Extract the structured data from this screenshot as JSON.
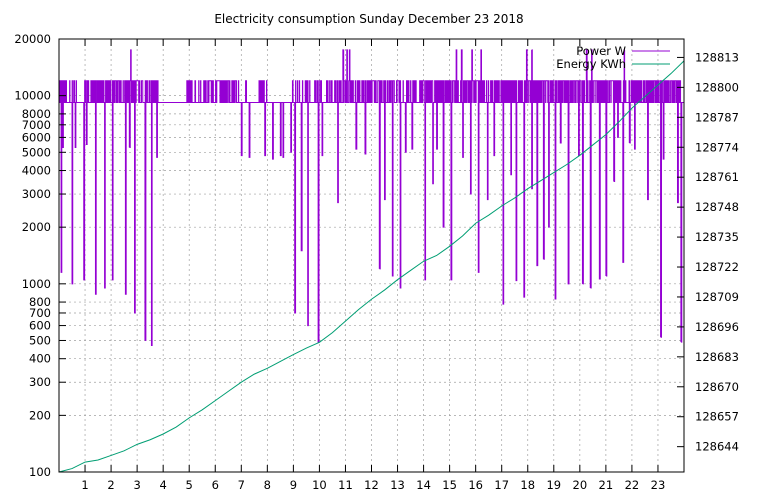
{
  "chart_data": {
    "type": "line",
    "title": "Electricity consumption Sunday December 23 2018",
    "grid": true,
    "legend_position": "top-right",
    "x_ticks": [
      "1",
      "2",
      "3",
      "4",
      "5",
      "6",
      "7",
      "8",
      "9",
      "10",
      "11",
      "12",
      "13",
      "14",
      "15",
      "16",
      "17",
      "18",
      "19",
      "20",
      "21",
      "22",
      "23"
    ],
    "xlim": [
      0,
      24
    ],
    "y_left": {
      "scale": "log",
      "ylim": [
        100,
        20000
      ],
      "ticks": [
        {
          "v": 100,
          "label": "100"
        },
        {
          "v": 200,
          "label": "200"
        },
        {
          "v": 300,
          "label": "300"
        },
        {
          "v": 400,
          "label": "400"
        },
        {
          "v": 500,
          "label": "500"
        },
        {
          "v": 600,
          "label": "600"
        },
        {
          "v": 700,
          "label": "700"
        },
        {
          "v": 800,
          "label": "800"
        },
        {
          "v": 1000,
          "label": "1000"
        },
        {
          "v": 2000,
          "label": "2000"
        },
        {
          "v": 3000,
          "label": "3000"
        },
        {
          "v": 4000,
          "label": "4000"
        },
        {
          "v": 5000,
          "label": "5000"
        },
        {
          "v": 6000,
          "label": "6000"
        },
        {
          "v": 7000,
          "label": "7000"
        },
        {
          "v": 8000,
          "label": "8000"
        },
        {
          "v": 10000,
          "label": "10000"
        },
        {
          "v": 20000,
          "label": "20000"
        }
      ]
    },
    "y_right": {
      "scale": "linear",
      "ylim": [
        128633,
        128821
      ],
      "ticks": [
        128644,
        128657,
        128670,
        128683,
        128696,
        128709,
        128722,
        128735,
        128748,
        128761,
        128774,
        128787,
        128800,
        128813
      ]
    },
    "series": [
      {
        "name": "Power W",
        "axis": "left",
        "color": "#9400d3",
        "base_level": 9200,
        "high_level": 12000,
        "dense_ranges": [
          [
            0.0,
            0.35
          ],
          [
            1.25,
            3.8
          ],
          [
            5.7,
            6.9
          ],
          [
            11.0,
            11.5
          ],
          [
            11.9,
            13.2
          ],
          [
            13.9,
            15.4
          ],
          [
            15.6,
            16.2
          ],
          [
            16.6,
            17.8
          ],
          [
            18.0,
            20.3
          ],
          [
            20.5,
            21.6
          ],
          [
            21.9,
            23.9
          ]
        ],
        "medium_ranges": [
          [
            0.35,
            1.25
          ],
          [
            4.9,
            5.7
          ],
          [
            6.9,
            7.2
          ],
          [
            7.6,
            8.0
          ],
          [
            8.9,
            10.1
          ],
          [
            10.2,
            11.0
          ],
          [
            11.5,
            11.9
          ],
          [
            13.2,
            13.9
          ],
          [
            15.4,
            15.6
          ],
          [
            16.2,
            16.6
          ],
          [
            17.8,
            18.0
          ],
          [
            20.3,
            20.5
          ],
          [
            21.6,
            21.9
          ]
        ],
        "spikes_high": [
          2.75,
          10.9,
          11.05,
          11.15,
          15.25,
          15.45,
          15.85,
          16.2,
          17.95,
          18.15,
          20.25,
          20.45,
          21.7
        ],
        "drops": [
          {
            "t": 0.08,
            "v": 1150
          },
          {
            "t": 0.14,
            "v": 5300
          },
          {
            "t": 0.5,
            "v": 1000
          },
          {
            "t": 0.62,
            "v": 5300
          },
          {
            "t": 0.95,
            "v": 1050
          },
          {
            "t": 1.05,
            "v": 5500
          },
          {
            "t": 1.4,
            "v": 880
          },
          {
            "t": 1.75,
            "v": 950
          },
          {
            "t": 2.05,
            "v": 1050
          },
          {
            "t": 2.55,
            "v": 880
          },
          {
            "t": 2.7,
            "v": 5300
          },
          {
            "t": 2.9,
            "v": 700
          },
          {
            "t": 3.3,
            "v": 500
          },
          {
            "t": 3.55,
            "v": 470
          },
          {
            "t": 3.75,
            "v": 4700
          },
          {
            "t": 7.0,
            "v": 4800
          },
          {
            "t": 7.3,
            "v": 4700
          },
          {
            "t": 7.9,
            "v": 4800
          },
          {
            "t": 8.2,
            "v": 4600
          },
          {
            "t": 8.5,
            "v": 4800
          },
          {
            "t": 8.6,
            "v": 4700
          },
          {
            "t": 8.9,
            "v": 5000
          },
          {
            "t": 9.05,
            "v": 700
          },
          {
            "t": 9.3,
            "v": 1500
          },
          {
            "t": 9.55,
            "v": 600
          },
          {
            "t": 9.95,
            "v": 490
          },
          {
            "t": 10.1,
            "v": 4800
          },
          {
            "t": 10.7,
            "v": 2700
          },
          {
            "t": 11.4,
            "v": 5200
          },
          {
            "t": 11.75,
            "v": 4900
          },
          {
            "t": 12.3,
            "v": 1200
          },
          {
            "t": 12.5,
            "v": 2800
          },
          {
            "t": 12.8,
            "v": 1100
          },
          {
            "t": 13.1,
            "v": 950
          },
          {
            "t": 13.3,
            "v": 5000
          },
          {
            "t": 13.55,
            "v": 5200
          },
          {
            "t": 14.05,
            "v": 1050
          },
          {
            "t": 14.35,
            "v": 3400
          },
          {
            "t": 14.5,
            "v": 5200
          },
          {
            "t": 14.75,
            "v": 2000
          },
          {
            "t": 15.05,
            "v": 1050
          },
          {
            "t": 15.5,
            "v": 4700
          },
          {
            "t": 15.8,
            "v": 3000
          },
          {
            "t": 16.1,
            "v": 1150
          },
          {
            "t": 16.45,
            "v": 2800
          },
          {
            "t": 16.7,
            "v": 4800
          },
          {
            "t": 17.05,
            "v": 780
          },
          {
            "t": 17.35,
            "v": 3800
          },
          {
            "t": 17.55,
            "v": 1040
          },
          {
            "t": 17.85,
            "v": 850
          },
          {
            "t": 18.15,
            "v": 3200
          },
          {
            "t": 18.35,
            "v": 1250
          },
          {
            "t": 18.6,
            "v": 1350
          },
          {
            "t": 18.8,
            "v": 2000
          },
          {
            "t": 19.05,
            "v": 830
          },
          {
            "t": 19.25,
            "v": 5600
          },
          {
            "t": 19.55,
            "v": 1000
          },
          {
            "t": 19.95,
            "v": 4800
          },
          {
            "t": 20.1,
            "v": 1000
          },
          {
            "t": 20.4,
            "v": 950
          },
          {
            "t": 20.75,
            "v": 1060
          },
          {
            "t": 21.0,
            "v": 1100
          },
          {
            "t": 21.3,
            "v": 3500
          },
          {
            "t": 21.45,
            "v": 6000
          },
          {
            "t": 21.65,
            "v": 1300
          },
          {
            "t": 21.9,
            "v": 5600
          },
          {
            "t": 22.1,
            "v": 5200
          },
          {
            "t": 22.6,
            "v": 2800
          },
          {
            "t": 23.1,
            "v": 520
          },
          {
            "t": 23.2,
            "v": 4600
          },
          {
            "t": 23.75,
            "v": 2700
          },
          {
            "t": 23.88,
            "v": 490
          }
        ]
      },
      {
        "name": "Energy KWh",
        "axis": "right",
        "color": "#009e73",
        "x": [
          0,
          0.5,
          1,
          1.5,
          2,
          2.5,
          3,
          3.5,
          4,
          4.5,
          5,
          5.5,
          6,
          6.5,
          7,
          7.5,
          8,
          8.5,
          9,
          9.5,
          10,
          10.5,
          11,
          11.5,
          12,
          12.5,
          13,
          13.5,
          14,
          14.5,
          15,
          15.5,
          16,
          16.5,
          17,
          17.5,
          18,
          18.5,
          19,
          19.5,
          20,
          20.5,
          21,
          21.5,
          22,
          22.5,
          23,
          23.5,
          24
        ],
        "values": [
          128633.0,
          128634.5,
          128637.3,
          128638.2,
          128640.2,
          128642.2,
          128645.0,
          128647.0,
          128649.5,
          128652.5,
          128656.5,
          128660.0,
          128664.0,
          128668.0,
          128672.0,
          128675.5,
          128678.0,
          128681.0,
          128684.0,
          128686.8,
          128689.3,
          128693.5,
          128698.5,
          128703.5,
          128708.0,
          128712.0,
          128716.5,
          128720.5,
          128724.5,
          128727.0,
          128731.0,
          128735.5,
          128741.0,
          128744.5,
          128748.5,
          128752.0,
          128756.0,
          128759.5,
          128763.0,
          128766.5,
          128770.5,
          128775.0,
          128779.5,
          128785.0,
          128791.0,
          128796.0,
          128801.0,
          128806.0,
          128811.5
        ]
      }
    ]
  }
}
